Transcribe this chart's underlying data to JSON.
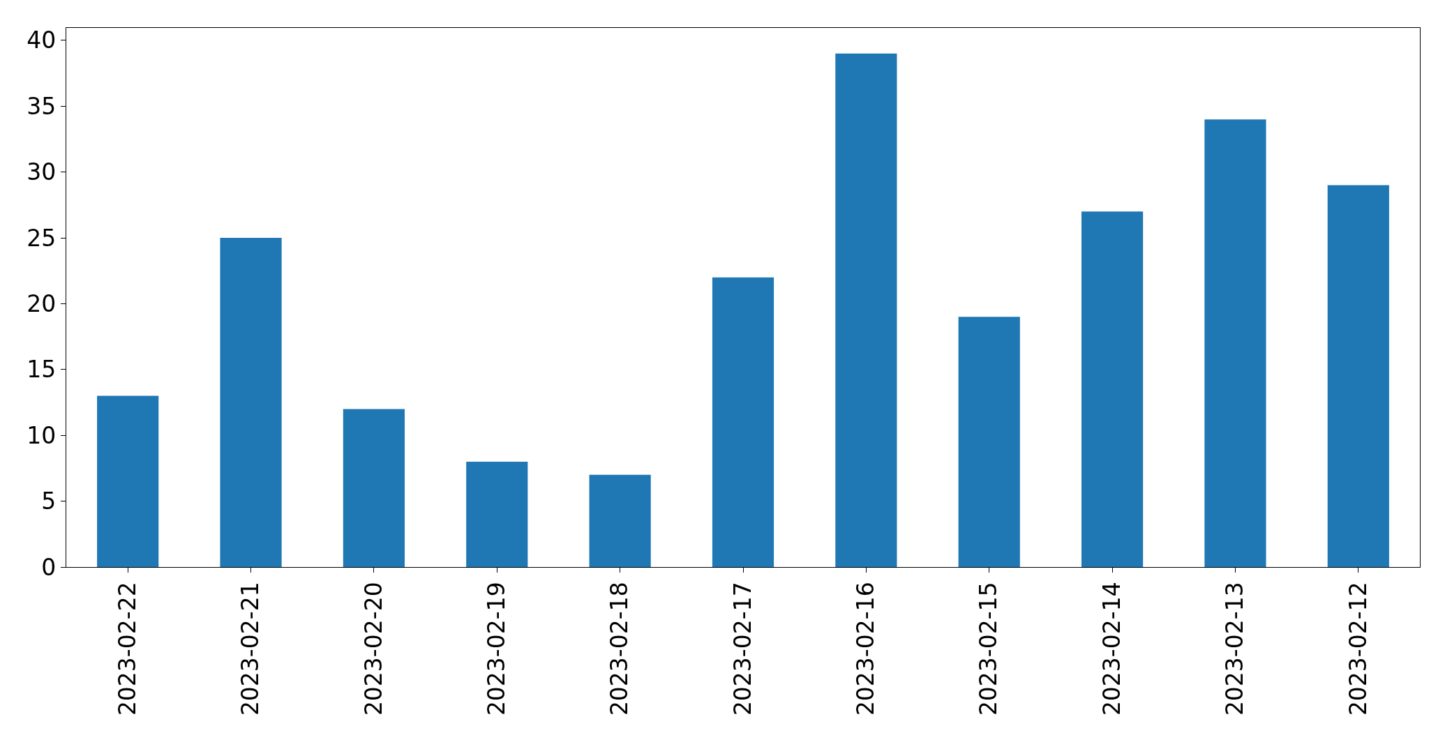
{
  "chart_data": {
    "type": "bar",
    "categories": [
      "2023-02-22",
      "2023-02-21",
      "2023-02-20",
      "2023-02-19",
      "2023-02-18",
      "2023-02-17",
      "2023-02-16",
      "2023-02-15",
      "2023-02-14",
      "2023-02-13",
      "2023-02-12"
    ],
    "values": [
      13,
      25,
      12,
      8,
      7,
      22,
      39,
      19,
      27,
      34,
      29
    ],
    "color": "#1f77b4",
    "ylim": [
      0,
      40.95
    ],
    "yticks": [
      0,
      5,
      10,
      15,
      20,
      25,
      30,
      35,
      40
    ],
    "grid": false,
    "legend": false
  }
}
